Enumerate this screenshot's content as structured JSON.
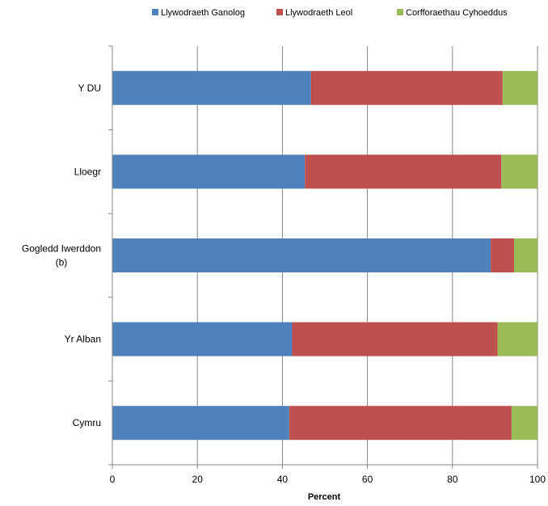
{
  "chart_data": {
    "type": "bar",
    "orientation": "horizontal",
    "stacked": true,
    "categories": [
      "Y DU",
      "Lloegr",
      "Gogledd Iwerddon\n(b)",
      "Yr Alban",
      "Cymru"
    ],
    "series": [
      {
        "name": "Llywodraeth Ganolog",
        "color": "#4f81bd",
        "values": [
          46.7,
          45.3,
          89.0,
          42.3,
          41.6
        ]
      },
      {
        "name": "Llywodraeth Leol",
        "color": "#c0504d",
        "values": [
          45.1,
          46.2,
          5.5,
          48.3,
          52.3
        ]
      },
      {
        "name": "Corfforaethau Cyhoeddus",
        "color": "#9bbb59",
        "values": [
          8.2,
          8.5,
          5.5,
          9.4,
          6.1
        ]
      }
    ],
    "title": "",
    "xlabel": "Percent",
    "ylabel": "",
    "xlim": [
      0,
      100
    ],
    "xticks": [
      0,
      20,
      40,
      60,
      80,
      100
    ],
    "grid": "vertical",
    "legend_position": "top"
  }
}
